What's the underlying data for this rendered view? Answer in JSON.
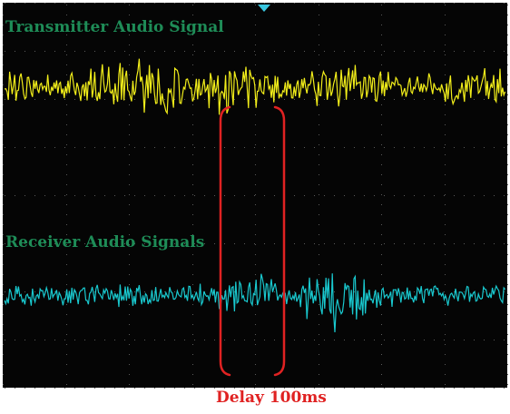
{
  "labels": {
    "transmitter": "Transmitter Audio Signal",
    "receiver": "Receiver Audio Signals",
    "delay": "Delay 100ms"
  },
  "colors": {
    "screen_background": "#050505",
    "grid_dots": "#5a5a5a",
    "transmitter_trace": "#f2ee1a",
    "receiver_trace": "#19c9cf",
    "label_text": "#1e8c57",
    "delay_annotation": "#e02222",
    "trigger_marker": "#39c6e0"
  }
}
